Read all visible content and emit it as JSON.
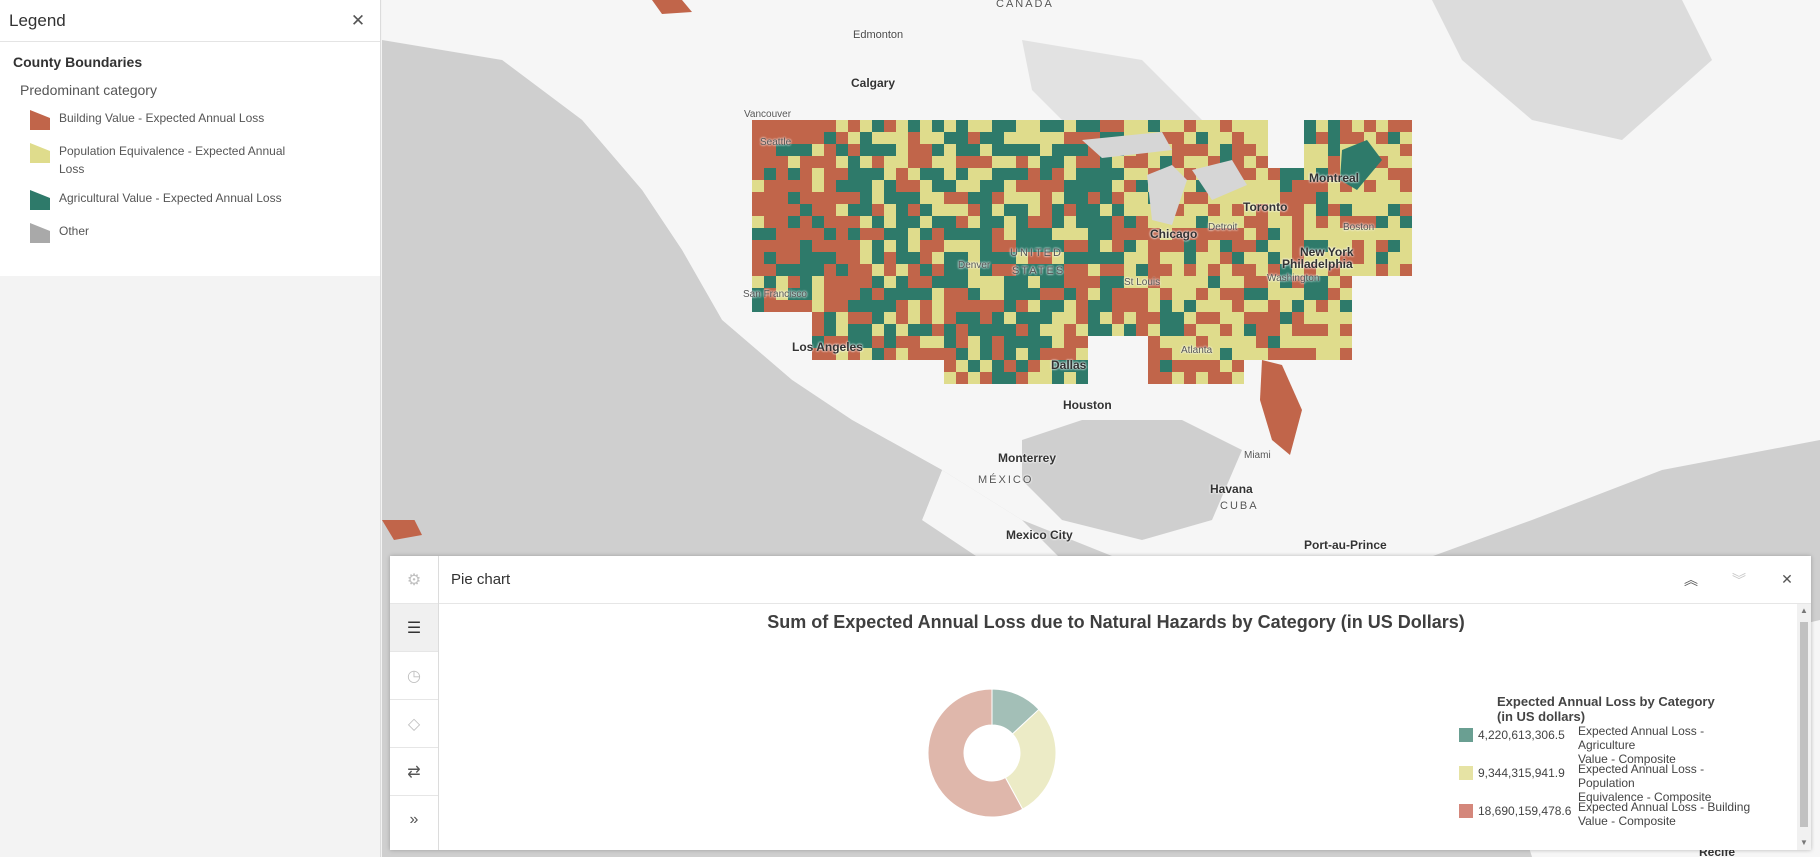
{
  "legend": {
    "title": "Legend",
    "layer": "County Boundaries",
    "field": "Predominant category",
    "items": [
      {
        "label": "Building Value - Expected Annual Loss",
        "color": "#c1654a"
      },
      {
        "label": "Population Equivalence - Expected Annual Loss",
        "color": "#dfdc8c"
      },
      {
        "label": "Agricultural Value - Expected Annual Loss",
        "color": "#2e7a6a"
      },
      {
        "label": "Other",
        "color": "#a9a9a9"
      }
    ]
  },
  "map": {
    "labels": {
      "canada": "CANADA",
      "edmonton": "Edmonton",
      "calgary": "Calgary",
      "vancouver": "Vancouver",
      "seattle": "Seattle",
      "montreal": "Montreal",
      "toronto": "Toronto",
      "chicago": "Chicago",
      "detroit": "Detroit",
      "boston": "Boston",
      "new_york": "New York",
      "philadelphia": "Philadelphia",
      "washington": "Washington",
      "united": "UNITED",
      "states": "STATES",
      "denver": "Denver",
      "st_louis": "St Louis",
      "san_francisco": "San Francisco",
      "los_angeles": "Los Angeles",
      "dallas": "Dallas",
      "atlanta": "Atlanta",
      "houston": "Houston",
      "miami": "Miami",
      "monterrey": "Monterrey",
      "mexico": "MÉXICO",
      "havana": "Havana",
      "cuba": "CUBA",
      "mexico_city": "Mexico City",
      "port_au_prince": "Port-au-Prince",
      "recife": "Recife"
    }
  },
  "chart_panel": {
    "header": "Pie chart",
    "icons": {
      "settings": "gear-icon",
      "list": "list-icon",
      "clock": "clock-icon",
      "eraser": "eraser-icon",
      "swap": "swap-icon",
      "expand": "double-chevron-right-icon",
      "collapse_up": "double-chevron-up-icon",
      "collapse_down": "double-chevron-down-icon",
      "close": "close-icon"
    }
  },
  "chart_data": {
    "type": "pie",
    "title": "Sum of Expected Annual Loss due to Natural Hazards by Category (in US Dollars)",
    "legend_title_line1": "Expected Annual Loss by Category",
    "legend_title_line2": "(in US dollars)",
    "legend_position": "right",
    "donut": true,
    "slices": [
      {
        "name_line1": "Expected Annual Loss - Agriculture",
        "name_line2": "Value - Composite",
        "value": 4220613306.5,
        "value_label": "4,220,613,306.5",
        "color": "#a3bfb7"
      },
      {
        "name_line1": "Expected Annual Loss - Population",
        "name_line2": "Equivalence - Composite",
        "value": 9344315941.9,
        "value_label": "9,344,315,941.9",
        "color": "#ecebc6"
      },
      {
        "name_line1": "Expected Annual Loss - Building",
        "name_line2": "Value - Composite",
        "value": 18690159478.6,
        "value_label": "18,690,159,478.6",
        "color": "#dfb7ab"
      }
    ],
    "legend_swatch_colors": [
      "#6a9f92",
      "#e6e3a4",
      "#d4877b"
    ]
  }
}
